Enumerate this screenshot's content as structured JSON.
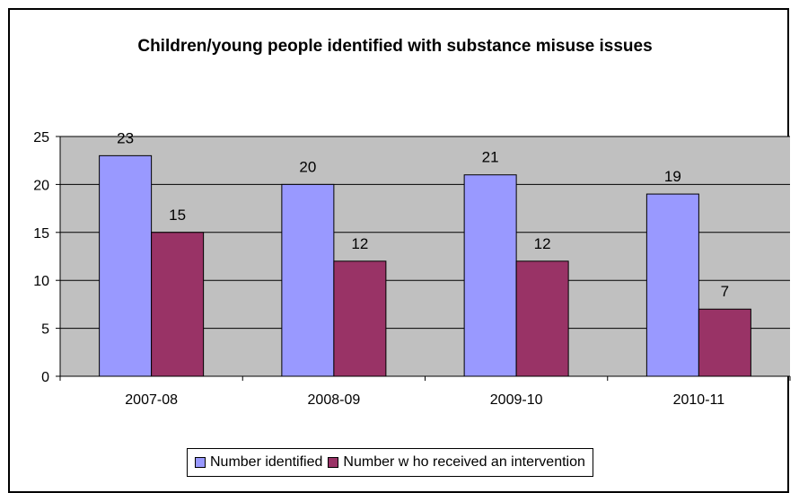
{
  "colors": {
    "series_identified": "#9999ff",
    "series_intervention": "#993366",
    "plot_background": "#c0c0c0",
    "gridline": "#000000"
  },
  "chart_data": {
    "type": "bar",
    "title": "Children/young people  identified with substance misuse issues",
    "categories": [
      "2007-08",
      "2008-09",
      "2009-10",
      "2010-11"
    ],
    "series": [
      {
        "name": "Number identified",
        "values": [
          23,
          20,
          21,
          19
        ]
      },
      {
        "name": "Number w ho received an intervention",
        "values": [
          15,
          12,
          12,
          7
        ]
      }
    ],
    "y_ticks": [
      0,
      5,
      10,
      15,
      20,
      25
    ],
    "ylim": [
      0,
      25
    ],
    "grid": true,
    "legend": "bottom",
    "data_labels": true
  }
}
